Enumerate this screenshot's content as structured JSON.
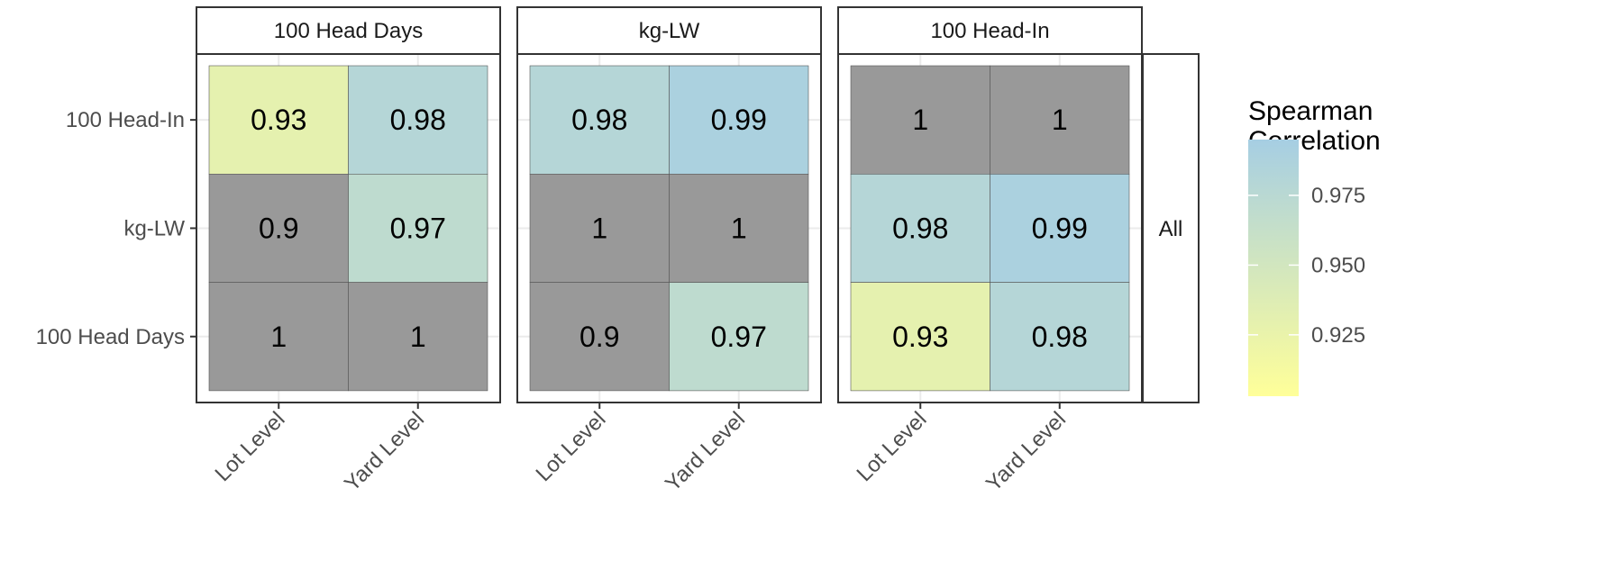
{
  "chart_data": {
    "type": "heatmap",
    "x_categories": [
      "Lot Level",
      "Yard Level"
    ],
    "y_categories": [
      "100 Head Days",
      "kg-LW",
      "100 Head-In"
    ],
    "row_strip": "All",
    "panels": [
      {
        "title": "100 Head Days",
        "values": {
          "100 Head-In": [
            0.93,
            0.98
          ],
          "kg-LW": [
            0.9,
            0.97
          ],
          "100 Head Days": [
            1,
            1
          ]
        }
      },
      {
        "title": "kg-LW",
        "values": {
          "100 Head-In": [
            0.98,
            0.99
          ],
          "kg-LW": [
            1,
            1
          ],
          "100 Head Days": [
            0.9,
            0.97
          ]
        }
      },
      {
        "title": "100 Head-In",
        "values": {
          "100 Head-In": [
            1,
            1
          ],
          "kg-LW": [
            0.98,
            0.99
          ],
          "100 Head Days": [
            0.93,
            0.98
          ]
        }
      }
    ],
    "legend": {
      "title": [
        "Spearman",
        "Correlation"
      ],
      "ticks": [
        0.925,
        0.95,
        0.975
      ],
      "tick_labels": [
        "0.925",
        "0.950",
        "0.975"
      ],
      "range": [
        0.903,
        0.995
      ],
      "low_color": "#ffff99",
      "high_color": "#a6cee3",
      "out_of_range_color": "#999999",
      "placement": "right"
    },
    "grid": true
  }
}
